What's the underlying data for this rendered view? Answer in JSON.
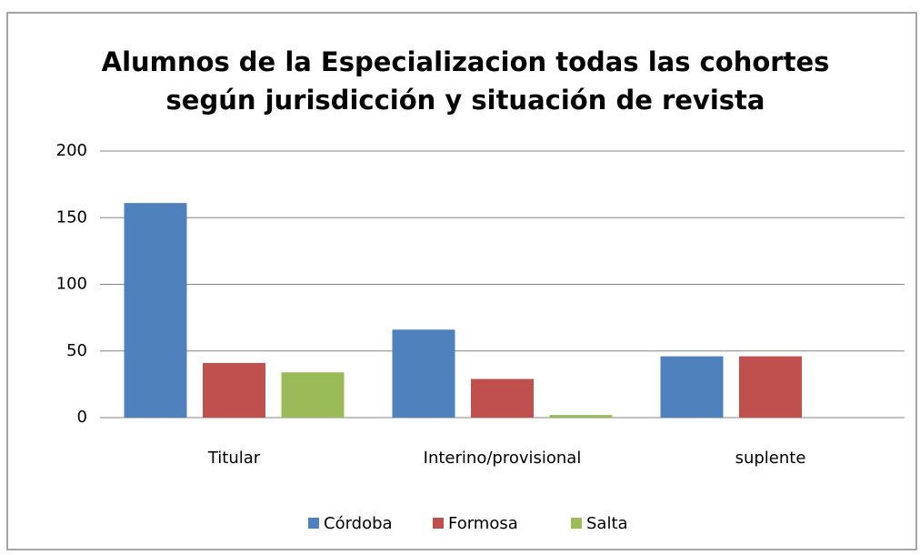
{
  "chart_data": {
    "type": "bar",
    "title": [
      "Alumnos de la Especializacion todas las cohortes",
      "según jurisdicción y situación de revista"
    ],
    "categories": [
      "Titular",
      "Interino/provisional",
      "suplente"
    ],
    "series": [
      {
        "name": "Córdoba",
        "color": "#4f81bd",
        "values": [
          161,
          66,
          46
        ]
      },
      {
        "name": "Formosa",
        "color": "#c0504d",
        "values": [
          41,
          29,
          46
        ]
      },
      {
        "name": "Salta",
        "color": "#9bbb59",
        "values": [
          34,
          2,
          0
        ]
      }
    ],
    "ylim": [
      0,
      200
    ],
    "yticks": [
      0,
      50,
      100,
      150,
      200
    ],
    "grid": true,
    "legend": "bottom"
  }
}
